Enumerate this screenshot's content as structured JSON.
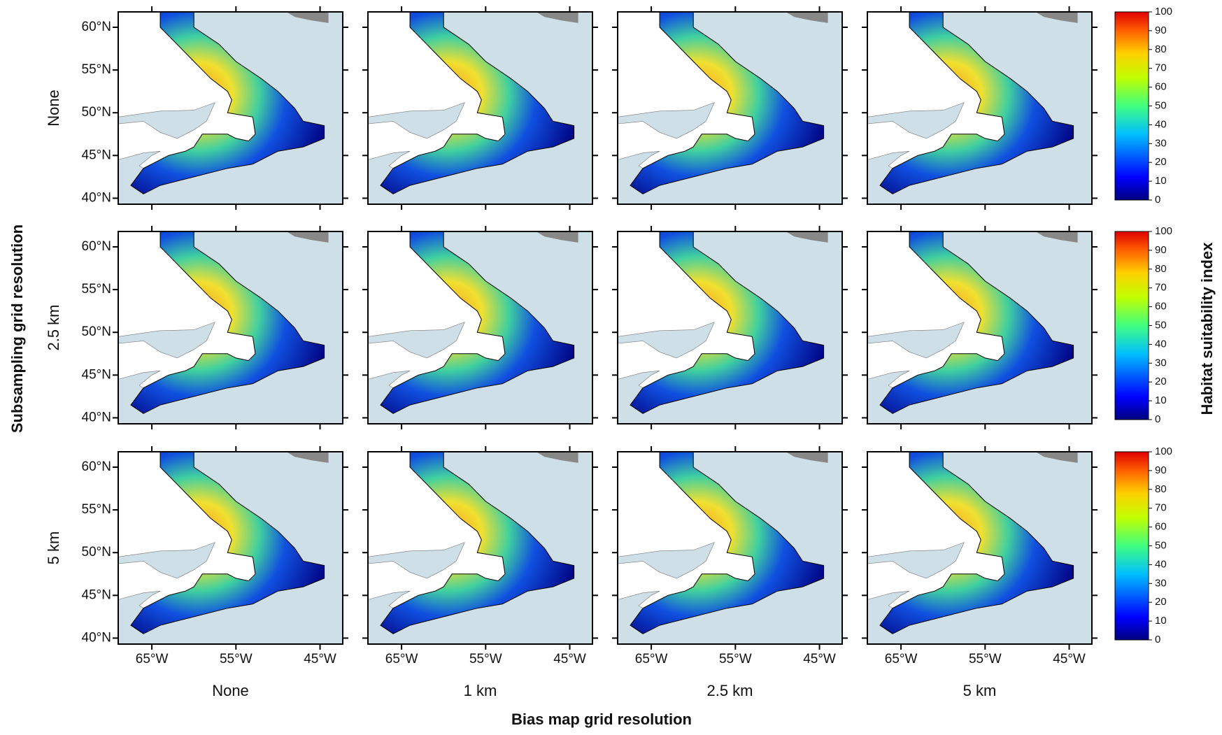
{
  "x_axis_title": "Bias map grid resolution",
  "y_axis_title": "Subsampling grid resolution",
  "colorbar_title": "Habitat suitability index",
  "columns": [
    "None",
    "1 km",
    "2.5 km",
    "5 km"
  ],
  "rows": [
    "None",
    "2.5 km",
    "5 km"
  ],
  "xlim": [
    -69,
    -42.3
  ],
  "ylim": [
    39.3,
    61.8
  ],
  "lat_ticks": [
    {
      "value": 60,
      "label": "60°N"
    },
    {
      "value": 55,
      "label": "55°N"
    },
    {
      "value": 50,
      "label": "50°N"
    },
    {
      "value": 45,
      "label": "45°N"
    },
    {
      "value": 40,
      "label": "40°N"
    }
  ],
  "lon_ticks": [
    {
      "value": -65,
      "label": "65°W"
    },
    {
      "value": -55,
      "label": "55°W"
    },
    {
      "value": -45,
      "label": "45°W"
    }
  ],
  "colorbar_lim": [
    0,
    100
  ],
  "colorbar_ticks": [
    0,
    10,
    20,
    30,
    40,
    50,
    60,
    70,
    80,
    90,
    100
  ]
}
